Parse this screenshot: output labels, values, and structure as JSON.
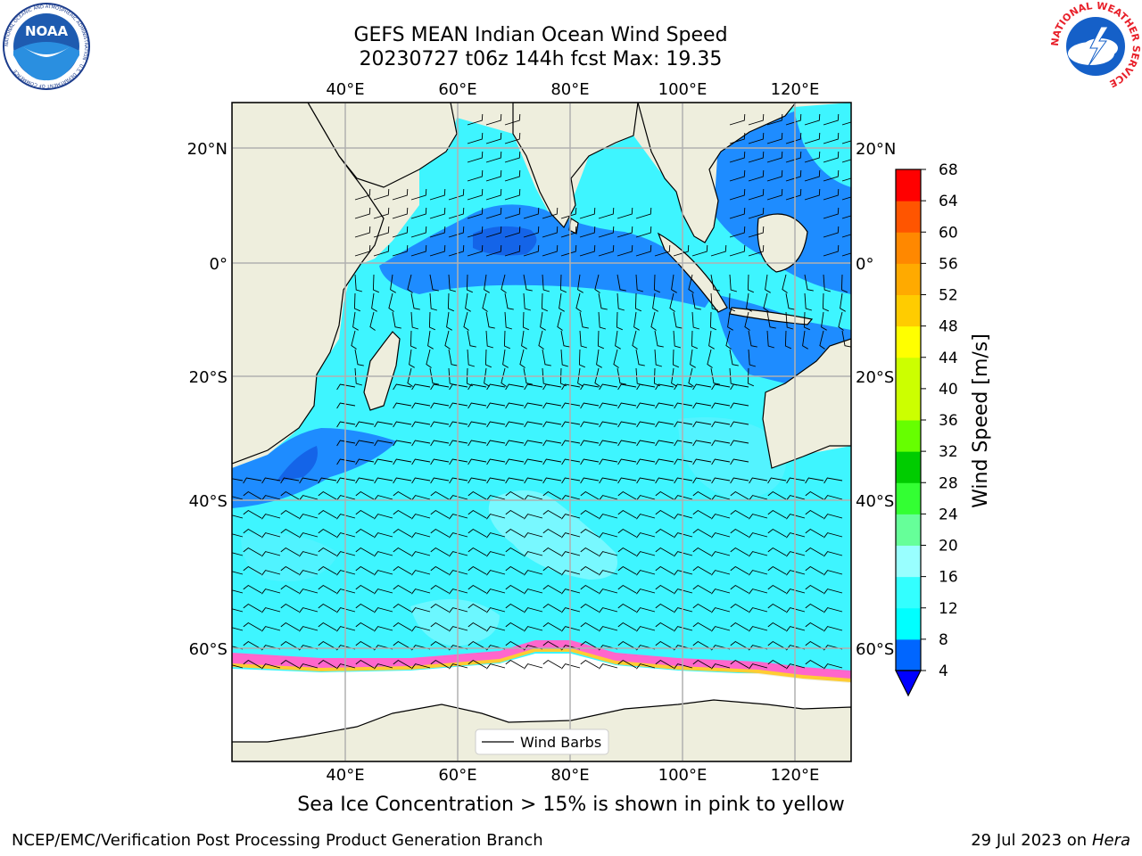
{
  "header": {
    "title_line1": "GEFS MEAN Indian Ocean Wind Speed",
    "title_line2": "20230727 t06z 144h fcst   Max: 19.35"
  },
  "map": {
    "lon_labels": [
      "40°E",
      "60°E",
      "80°E",
      "100°E",
      "120°E"
    ],
    "lat_labels": [
      "20°N",
      "0°",
      "20°S",
      "40°S",
      "60°S"
    ],
    "legend_label": "Wind Barbs",
    "land_color": "#eeeedd",
    "ice_colors": [
      "#ff66cc",
      "#ffcc33",
      "#ff99ff"
    ]
  },
  "colorbar": {
    "label": "Wind Speed [m/s]",
    "ticks": [
      "4",
      "8",
      "12",
      "16",
      "20",
      "24",
      "28",
      "32",
      "36",
      "40",
      "44",
      "48",
      "52",
      "56",
      "60",
      "64",
      "68"
    ],
    "colors": [
      "#0066ff",
      "#00ffff",
      "#33ffff",
      "#99ffff",
      "#66ff99",
      "#33ff33",
      "#00cc00",
      "#66ff00",
      "#ccff00",
      "#ccff00",
      "#ffff00",
      "#ffcc00",
      "#ffaa00",
      "#ff8800",
      "#ff5500",
      "#ff0000"
    ],
    "under_color": "#0000ff"
  },
  "caption": "Sea Ice Concentration > 15% is shown in pink to yellow",
  "footer": {
    "left": "NCEP/EMC/Verification Post Processing Product Generation Branch",
    "right_date": "29 Jul 2023 on ",
    "right_host": "Hera"
  },
  "logos": {
    "noaa_text": "NOAA",
    "noaa_ring": "NATIONAL OCEANIC AND ATMOSPHERIC ADMINISTRATION · U.S. DEPARTMENT OF COMMERCE",
    "nws_ring": "NATIONAL WEATHER SERVICE"
  }
}
